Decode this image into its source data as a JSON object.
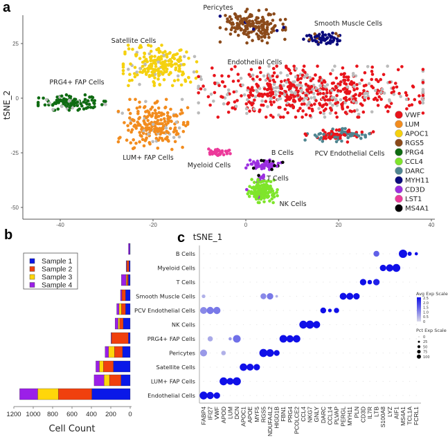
{
  "panel_letters": {
    "a": "a",
    "b": "b",
    "c": "c"
  },
  "chart_data": [
    {
      "type": "scatter",
      "title": "",
      "xlabel": "tSNE_1",
      "ylabel": "tSNE_2",
      "xlim": [
        -47,
        40
      ],
      "ylim": [
        -55,
        38
      ],
      "xticks": [
        -40,
        -20,
        0,
        20,
        40
      ],
      "yticks": [
        25,
        0,
        -25,
        -50
      ],
      "grid": false,
      "legend_position": "right",
      "legend": [
        {
          "label": "VWF",
          "color": "#E8141B"
        },
        {
          "label": "LUM",
          "color": "#F28C1E"
        },
        {
          "label": "APOC1",
          "color": "#F5D10F"
        },
        {
          "label": "RGS5",
          "color": "#8B4A1A"
        },
        {
          "label": "PRG4",
          "color": "#0F6B12"
        },
        {
          "label": "CCL4",
          "color": "#7FE52B"
        },
        {
          "label": "DARC",
          "color": "#4F8590"
        },
        {
          "label": "MYH11",
          "color": "#0A0A7D"
        },
        {
          "label": "CD3D",
          "color": "#9B2FE0"
        },
        {
          "label": "LST1",
          "color": "#EC3A9A"
        },
        {
          "label": "MS4A1",
          "color": "#000000"
        }
      ],
      "clusters": [
        {
          "label": "PRG4+ FAP Cells",
          "center": [
            -37.5,
            -2
          ],
          "spread": [
            3.3,
            1.6
          ],
          "count": 130,
          "color": "#0F6B12",
          "secondary_color": "#BBBBBB",
          "secondary_fraction": 0.12
        },
        {
          "label": "Satellite Cells",
          "center": [
            -18.5,
            15
          ],
          "spread": [
            3.6,
            4.2
          ],
          "count": 220,
          "color": "#F5D10F",
          "secondary_color": "#BBBBBB",
          "secondary_fraction": 0.08
        },
        {
          "label": "LUM+ FAP Cells",
          "center": [
            -20,
            -12
          ],
          "spread": [
            3.4,
            5.2
          ],
          "count": 230,
          "color": "#F28C1E",
          "secondary_color": "#BBBBBB",
          "secondary_fraction": 0.15
        },
        {
          "label": "Pericytes",
          "center": [
            1.5,
            33
          ],
          "spread": [
            3.2,
            3.5
          ],
          "count": 170,
          "color": "#8B4A1A",
          "secondary_color": "#0A0A7D",
          "secondary_fraction": 0.03
        },
        {
          "label": "Smooth Muscle Cells",
          "center": [
            16.5,
            27.5
          ],
          "spread": [
            1.9,
            1.3
          ],
          "count": 70,
          "color": "#0A0A7D",
          "secondary_color": "#8B4A1A",
          "secondary_fraction": 0.1
        },
        {
          "label": "Endothelial Cells",
          "center": [
            14,
            3
          ],
          "spread": [
            11,
            5.3
          ],
          "count": 650,
          "color": "#E8141B",
          "secondary_color": "#BBBBBB",
          "secondary_fraction": 0.3
        },
        {
          "label": "PCV Endothelial Cells",
          "center": [
            20,
            -17
          ],
          "spread": [
            3.4,
            1.4
          ],
          "count": 110,
          "color": "#4F8590",
          "secondary_color": "#E8141B",
          "secondary_fraction": 0.45
        },
        {
          "label": "Myeloid Cells",
          "center": [
            -6,
            -25
          ],
          "spread": [
            1.2,
            0.8
          ],
          "count": 40,
          "color": "#EC3A9A",
          "secondary_color": "#EC3A9A",
          "secondary_fraction": 0
        },
        {
          "label": "B Cells",
          "center": [
            4,
            -30.5
          ],
          "spread": [
            1.8,
            1.0
          ],
          "count": 70,
          "color": "#9B2FE0",
          "secondary_color": "#000000",
          "secondary_fraction": 0.15
        },
        {
          "label": "T Cells",
          "center": [
            3,
            -36.5
          ],
          "spread": [
            0.5,
            0.9
          ],
          "count": 15,
          "color": "#9B2FE0",
          "secondary_color": "#000000",
          "secondary_fraction": 0.1
        },
        {
          "label": "NK Cells",
          "center": [
            3.5,
            -42.5
          ],
          "spread": [
            1.5,
            2.4
          ],
          "count": 150,
          "color": "#7FE52B",
          "secondary_color": "#9B2FE0",
          "secondary_fraction": 0.05
        }
      ]
    },
    {
      "type": "bar",
      "orientation": "horizontal-stacked-reversed",
      "xlabel": "Cell Count",
      "xlim": [
        0,
        1200
      ],
      "xticks": [
        1200,
        1000,
        800,
        600,
        400,
        200,
        0
      ],
      "legend_position": "top-left",
      "categories": [
        "B Cells",
        "Myeloid Cells",
        "T Cells",
        "Smooth Muscle Cells",
        "PCV Endothelial Cells",
        "NK Cells",
        "PRG4+ FAP Cells",
        "Pericytes",
        "Satellite Cells",
        "LUM+ FAP Cells",
        "Endothelial Cells"
      ],
      "series": [
        {
          "name": "Sample 1",
          "color": "#0A18E8",
          "values": [
            5,
            12,
            20,
            48,
            48,
            72,
            19,
            79,
            174,
            95,
            396
          ]
        },
        {
          "name": "Sample 2",
          "color": "#F0400E",
          "values": [
            0,
            22,
            15,
            38,
            43,
            36,
            174,
            84,
            103,
            119,
            346
          ]
        },
        {
          "name": "Sample 3",
          "color": "#FFD60A",
          "values": [
            0,
            2,
            8,
            0,
            24,
            17,
            0,
            60,
            41,
            55,
            212
          ]
        },
        {
          "name": "Sample 4",
          "color": "#9B1FE8",
          "values": [
            13,
            6,
            48,
            14,
            24,
            31,
            5,
            36,
            36,
            103,
            186
          ]
        }
      ]
    },
    {
      "type": "scatter",
      "subtype": "dotplot",
      "rows": [
        "B Cells",
        "Myeloid Cells",
        "T Cells",
        "Smooth Muscle Cells",
        "PCV Endothelial Cells",
        "NK Cells",
        "PRG4+ FAP Cells",
        "Pericytes",
        "Satellite Cells",
        "LUM+ FAP Cells",
        "Endothelial Cells"
      ],
      "genes": [
        "FABP4",
        "IFI27",
        "VWF",
        "APOD",
        "LUM",
        "DCN",
        "APOC1",
        "APOE",
        "MYF5",
        "RGS5",
        "NDUFA4L2",
        "HIGD1B",
        "FBN1",
        "PRG4",
        "PCOLCE2",
        "CCL4",
        "NKG7",
        "GNLY",
        "DARC",
        "CCL14",
        "PLVAP",
        "PERGL",
        "MYH11",
        "PLN",
        "CD3D",
        "IL7R",
        "LTB",
        "S100A8",
        "LYZ",
        "AIF1",
        "MS4A1",
        "TCL1A",
        "FCRL1"
      ],
      "dot_fields": [
        "row",
        "gene",
        "pct_exp",
        "avg_exp"
      ],
      "dots": [
        [
          "B Cells",
          "LTB",
          50,
          1.5
        ],
        [
          "B Cells",
          "MS4A1",
          100,
          2.5
        ],
        [
          "B Cells",
          "TCL1A",
          25,
          2.5
        ],
        [
          "B Cells",
          "FCRL1",
          15,
          2.5
        ],
        [
          "Myeloid Cells",
          "S100A8",
          60,
          2.5
        ],
        [
          "Myeloid Cells",
          "LYZ",
          75,
          2.5
        ],
        [
          "Myeloid Cells",
          "AIF1",
          90,
          2.5
        ],
        [
          "T Cells",
          "CD3D",
          60,
          2.5
        ],
        [
          "T Cells",
          "IL7R",
          30,
          2.5
        ],
        [
          "T Cells",
          "LTB",
          60,
          2.3
        ],
        [
          "Smooth Muscle Cells",
          "FABP4",
          20,
          0.5
        ],
        [
          "Smooth Muscle Cells",
          "RGS5",
          50,
          1.0
        ],
        [
          "Smooth Muscle Cells",
          "NDUFA4L2",
          60,
          1.2
        ],
        [
          "Smooth Muscle Cells",
          "HIGD1B",
          10,
          0.5
        ],
        [
          "Smooth Muscle Cells",
          "PERGL",
          70,
          2.5
        ],
        [
          "Smooth Muscle Cells",
          "MYH11",
          70,
          2.5
        ],
        [
          "Smooth Muscle Cells",
          "PLN",
          60,
          2.5
        ],
        [
          "PCV Endothelial Cells",
          "FABP4",
          70,
          1.0
        ],
        [
          "PCV Endothelial Cells",
          "IFI27",
          75,
          1.2
        ],
        [
          "PCV Endothelial Cells",
          "VWF",
          75,
          1.2
        ],
        [
          "PCV Endothelial Cells",
          "DARC",
          50,
          2.5
        ],
        [
          "PCV Endothelial Cells",
          "CCL14",
          20,
          2.5
        ],
        [
          "PCV Endothelial Cells",
          "PLVAP",
          40,
          2.5
        ],
        [
          "NK Cells",
          "CCL4",
          90,
          2.5
        ],
        [
          "NK Cells",
          "NKG7",
          95,
          2.5
        ],
        [
          "NK Cells",
          "GNLY",
          75,
          2.5
        ],
        [
          "PRG4+ FAP Cells",
          "IFI27",
          40,
          0.6
        ],
        [
          "PRG4+ FAP Cells",
          "LUM",
          15,
          0.8
        ],
        [
          "PRG4+ FAP Cells",
          "DCN",
          85,
          1.3
        ],
        [
          "PRG4+ FAP Cells",
          "FBN1",
          85,
          2.5
        ],
        [
          "PRG4+ FAP Cells",
          "PRG4",
          75,
          2.5
        ],
        [
          "PRG4+ FAP Cells",
          "PCOLCE2",
          80,
          2.5
        ],
        [
          "Pericytes",
          "FABP4",
          70,
          0.8
        ],
        [
          "Pericytes",
          "APOD",
          30,
          0.5
        ],
        [
          "Pericytes",
          "RGS5",
          95,
          2.5
        ],
        [
          "Pericytes",
          "NDUFA4L2",
          85,
          2.5
        ],
        [
          "Pericytes",
          "HIGD1B",
          50,
          2.5
        ],
        [
          "Satellite Cells",
          "APOC1",
          80,
          2.5
        ],
        [
          "Satellite Cells",
          "APOE",
          70,
          2.5
        ],
        [
          "Satellite Cells",
          "MYF5",
          60,
          2.5
        ],
        [
          "LUM+ FAP Cells",
          "APOD",
          90,
          2.5
        ],
        [
          "LUM+ FAP Cells",
          "LUM",
          70,
          2.5
        ],
        [
          "LUM+ FAP Cells",
          "DCN",
          95,
          2.5
        ],
        [
          "Endothelial Cells",
          "FABP4",
          90,
          2.5
        ],
        [
          "Endothelial Cells",
          "IFI27",
          75,
          2.5
        ],
        [
          "Endothelial Cells",
          "VWF",
          60,
          2.5
        ]
      ],
      "color_legend": {
        "title": "Avg Exp Scale",
        "ticks": [
          "2.5",
          "2.0",
          "1.5",
          "1.0",
          "0.5",
          "0"
        ],
        "low_color": "#D9D9E8",
        "high_color": "#1010E8",
        "range": [
          0,
          2.5
        ]
      },
      "size_legend": {
        "title": "Pct Exp Scale",
        "ticks": [
          0,
          25,
          50,
          75,
          100
        ]
      }
    }
  ]
}
